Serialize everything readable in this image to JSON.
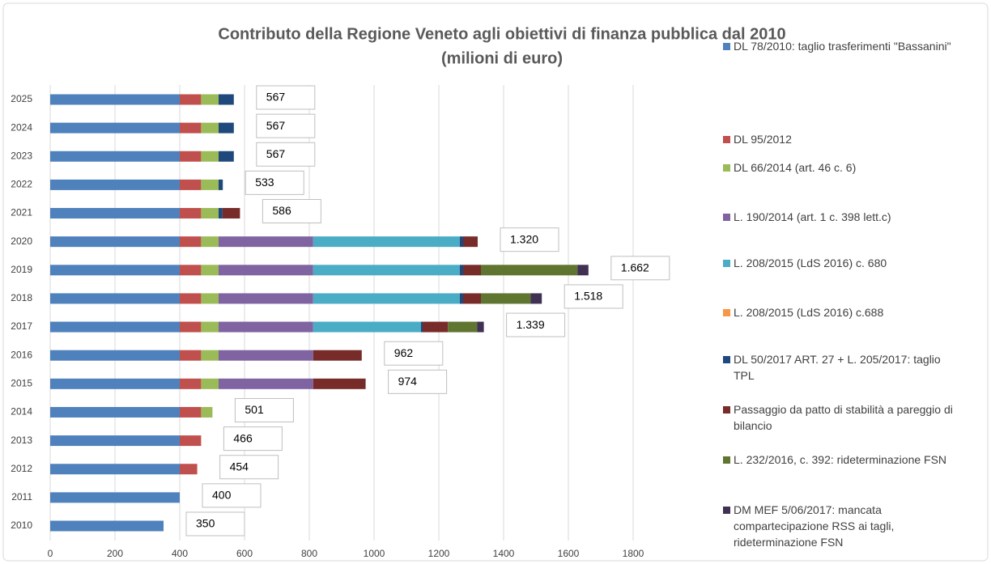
{
  "chart_data": {
    "type": "stacked-barh",
    "title": "Contributo della Regione Veneto agli obiettivi di finanza pubblica dal 2010",
    "subtitle": "(milioni di euro)",
    "categories": [
      "2025",
      "2024",
      "2023",
      "2022",
      "2021",
      "2020",
      "2019",
      "2018",
      "2017",
      "2016",
      "2015",
      "2014",
      "2013",
      "2012",
      "2011",
      "2010"
    ],
    "total_labels": [
      "567",
      "567",
      "567",
      "533",
      "586",
      "1.320",
      "1.662",
      "1.518",
      "1.339",
      "962",
      "974",
      "501",
      "466",
      "454",
      "400",
      "350"
    ],
    "xlim": [
      0,
      2000
    ],
    "xticks": [
      0,
      200,
      400,
      600,
      800,
      1000,
      1200,
      1400,
      1600,
      1800
    ],
    "grid": true,
    "legend": "right",
    "series": [
      {
        "name": "DL 78/2010: taglio trasferimenti \"Bassanini\"",
        "color": "#4f81bd",
        "values": [
          400,
          400,
          400,
          400,
          400,
          400,
          400,
          400,
          400,
          400,
          400,
          400,
          400,
          400,
          400,
          350
        ]
      },
      {
        "name": "DL 95/2012",
        "color": "#c0504d",
        "values": [
          66,
          66,
          66,
          66,
          66,
          66,
          66,
          66,
          66,
          66,
          66,
          66,
          66,
          54,
          null,
          null
        ]
      },
      {
        "name": "DL 66/2014 (art. 46 c. 6)",
        "color": "#9bbb59",
        "values": [
          54,
          54,
          54,
          54,
          54,
          54,
          54,
          54,
          54,
          54,
          54,
          35,
          null,
          null,
          null,
          null
        ]
      },
      {
        "name": "L. 190/2014 (art. 1 c. 398 lett.c)",
        "color": "#8064a2",
        "values": [
          null,
          null,
          null,
          null,
          null,
          292,
          292,
          292,
          292,
          292,
          292,
          null,
          null,
          null,
          null,
          null
        ]
      },
      {
        "name": "L. 208/2015 (LdS 2016) c. 680",
        "color": "#4bacc6",
        "values": [
          null,
          null,
          null,
          null,
          null,
          453,
          453,
          453,
          333,
          null,
          null,
          null,
          null,
          null,
          null,
          null
        ]
      },
      {
        "name": "L. 208/2015 (LdS 2016) c.688",
        "color": "#f79646",
        "values": [
          null,
          null,
          null,
          null,
          null,
          null,
          null,
          null,
          null,
          null,
          null,
          null,
          null,
          null,
          null,
          null
        ]
      },
      {
        "name": "DL 50/2017 ART. 27 + L. 205/2017: taglio TPL",
        "color": "#1f497d",
        "values": [
          47,
          47,
          47,
          13,
          12,
          10,
          10,
          10,
          5,
          null,
          null,
          null,
          null,
          null,
          null,
          null
        ]
      },
      {
        "name": "Passaggio da patto di stabilità a pareggio di bilancio",
        "color": "#772c2a",
        "values": [
          null,
          null,
          null,
          null,
          54,
          45,
          55,
          55,
          78,
          150,
          162,
          null,
          null,
          null,
          null,
          null
        ]
      },
      {
        "name": "L. 232/2016, c. 392: rideterminazione FSN",
        "color": "#5f7530",
        "values": [
          null,
          null,
          null,
          null,
          null,
          null,
          298,
          153,
          90,
          null,
          null,
          null,
          null,
          null,
          null,
          null
        ]
      },
      {
        "name": "DM MEF 5/06/2017: mancata compartecipazione RSS ai tagli, rideterminazione FSN",
        "color": "#403152",
        "values": [
          null,
          null,
          null,
          null,
          null,
          null,
          34,
          35,
          21,
          null,
          null,
          null,
          null,
          null,
          null,
          null
        ]
      }
    ]
  }
}
